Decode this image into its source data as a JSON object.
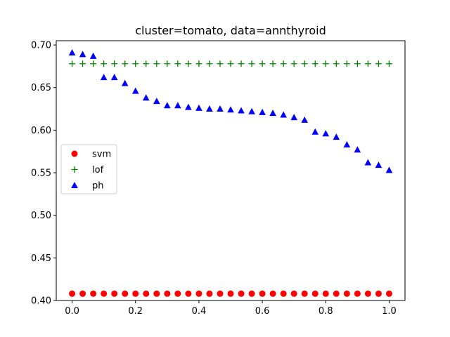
{
  "chart_data": {
    "type": "scatter",
    "title": "cluster=tomato, data=annthyroid",
    "xlabel": "",
    "ylabel": "",
    "xlim": [
      -0.05,
      1.05
    ],
    "ylim": [
      0.4,
      0.705
    ],
    "xticks": [
      "0.0",
      "0.2",
      "0.4",
      "0.6",
      "0.8",
      "1.0"
    ],
    "yticks": [
      "0.40",
      "0.45",
      "0.50",
      "0.55",
      "0.60",
      "0.65",
      "0.70"
    ],
    "grid": false,
    "legend_position": "center-left",
    "x": [
      0.0,
      0.0333,
      0.0667,
      0.1,
      0.1333,
      0.1667,
      0.2,
      0.2333,
      0.2667,
      0.3,
      0.3333,
      0.3667,
      0.4,
      0.4333,
      0.4667,
      0.5,
      0.5333,
      0.5667,
      0.6,
      0.6333,
      0.6667,
      0.7,
      0.7333,
      0.7667,
      0.8,
      0.8333,
      0.8667,
      0.9,
      0.9333,
      0.9667,
      1.0
    ],
    "series": [
      {
        "name": "svm",
        "color": "#ff0000",
        "marker": "circle",
        "values": [
          0.408,
          0.408,
          0.408,
          0.408,
          0.408,
          0.408,
          0.408,
          0.408,
          0.408,
          0.408,
          0.408,
          0.408,
          0.408,
          0.408,
          0.408,
          0.408,
          0.408,
          0.408,
          0.408,
          0.408,
          0.408,
          0.408,
          0.408,
          0.408,
          0.408,
          0.408,
          0.408,
          0.408,
          0.408,
          0.408,
          0.408
        ]
      },
      {
        "name": "lof",
        "color": "#008000",
        "marker": "plus",
        "values": [
          0.678,
          0.678,
          0.678,
          0.678,
          0.678,
          0.678,
          0.678,
          0.678,
          0.678,
          0.678,
          0.678,
          0.678,
          0.678,
          0.678,
          0.678,
          0.678,
          0.678,
          0.678,
          0.678,
          0.678,
          0.678,
          0.678,
          0.678,
          0.678,
          0.678,
          0.678,
          0.678,
          0.678,
          0.678,
          0.678,
          0.678
        ]
      },
      {
        "name": "ph",
        "color": "#0000ff",
        "marker": "triangle",
        "values": [
          0.691,
          0.689,
          0.687,
          0.662,
          0.662,
          0.655,
          0.646,
          0.638,
          0.634,
          0.629,
          0.629,
          0.627,
          0.626,
          0.625,
          0.625,
          0.624,
          0.623,
          0.622,
          0.621,
          0.62,
          0.618,
          0.615,
          0.612,
          0.598,
          0.596,
          0.592,
          0.583,
          0.577,
          0.562,
          0.559,
          0.553
        ]
      }
    ]
  }
}
